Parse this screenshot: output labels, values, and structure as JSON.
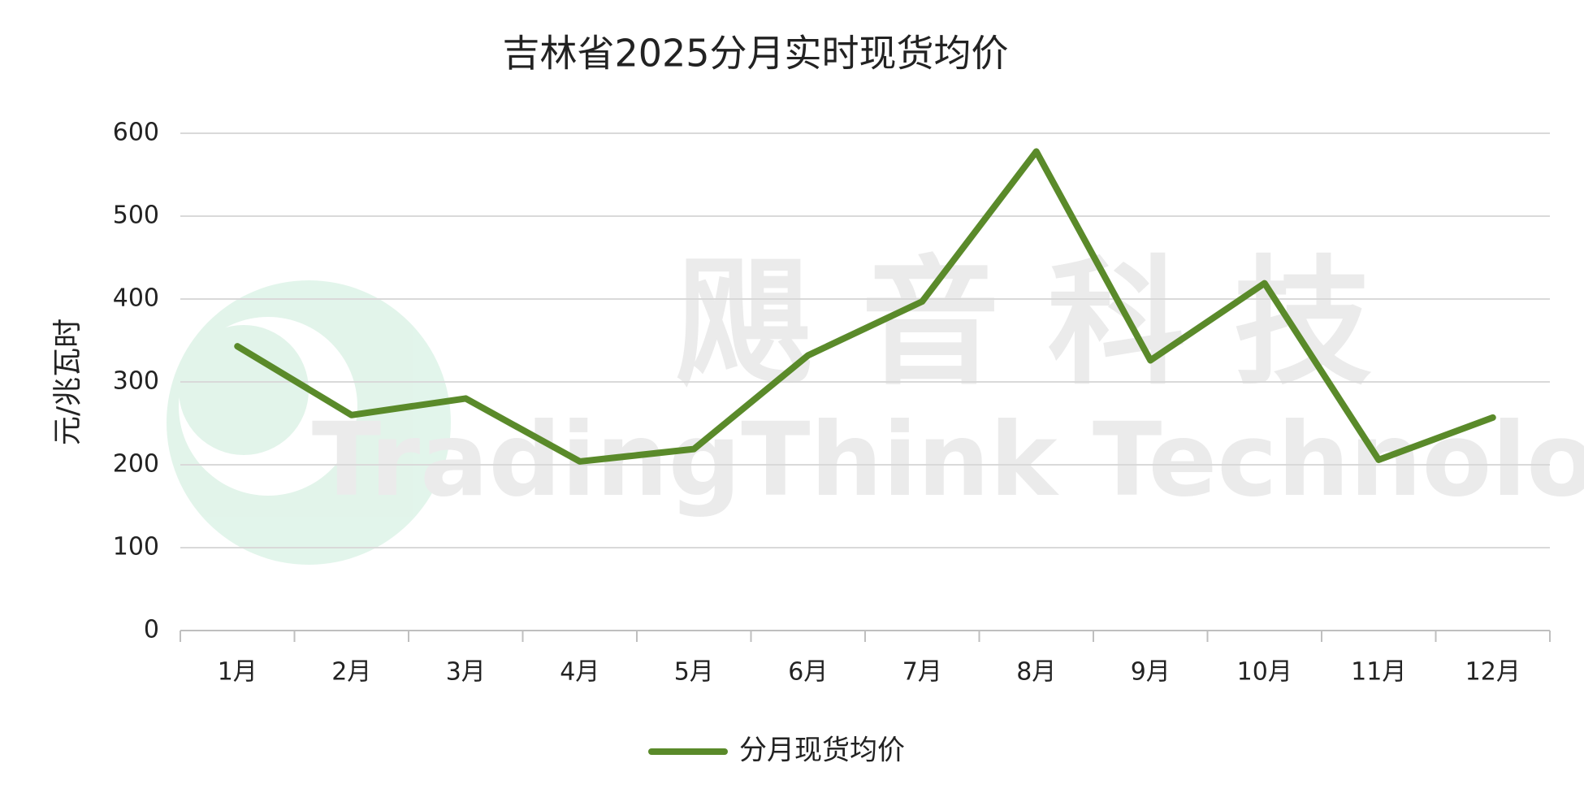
{
  "chart_data": {
    "type": "line",
    "title": "吉林省2025分月实时现货均价",
    "y_label": "元/兆瓦时",
    "categories": [
      "1月",
      "2月",
      "3月",
      "4月",
      "5月",
      "6月",
      "7月",
      "8月",
      "9月",
      "10月",
      "11月",
      "12月"
    ],
    "series": [
      {
        "name": "分月现货均价",
        "color": "#5a8a2a",
        "values": [
          343,
          260,
          280,
          204,
          219,
          332,
          397,
          578,
          326,
          419,
          206,
          257
        ]
      }
    ],
    "ylim": [
      0,
      600
    ],
    "yticks": [
      0,
      100,
      200,
      300,
      400,
      500,
      600
    ],
    "grid": true,
    "legend": "bottom",
    "watermark": {
      "cn": "飓 音 科 技",
      "en": "TradingThink Technology"
    }
  }
}
